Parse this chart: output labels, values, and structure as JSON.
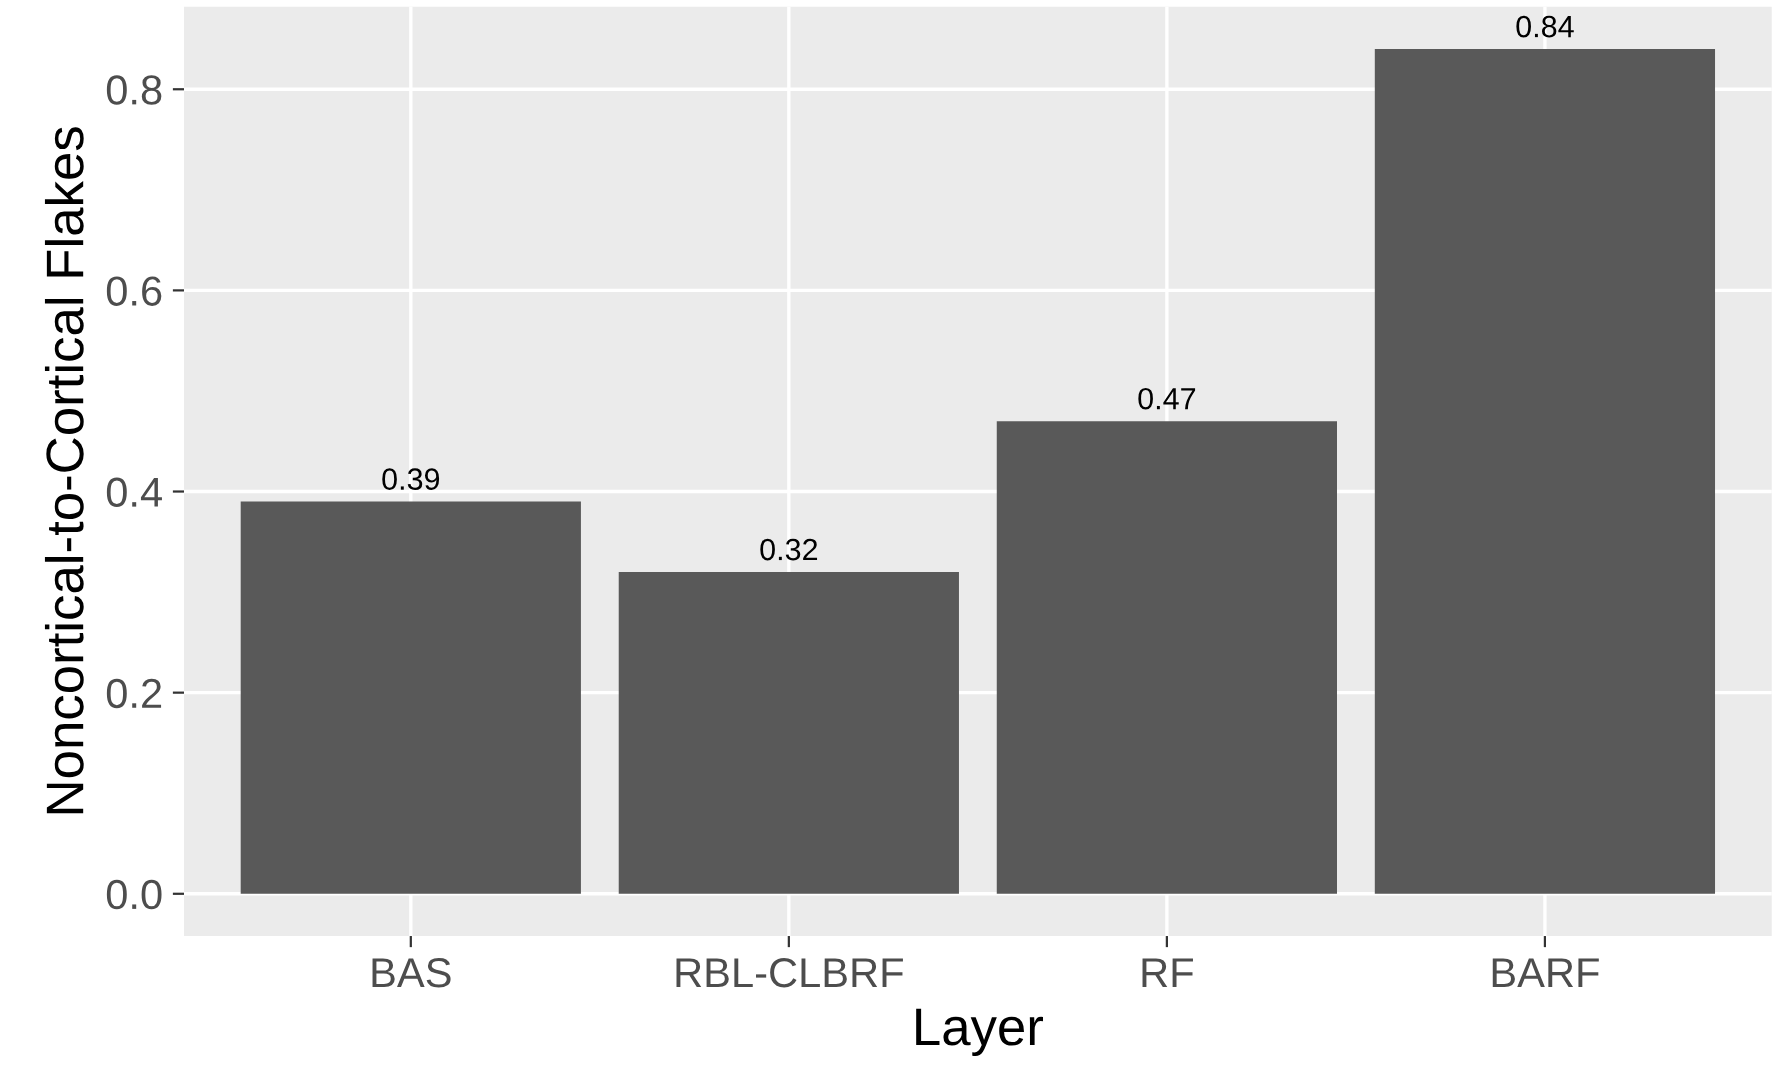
{
  "chart_data": {
    "type": "bar",
    "xlabel": "Layer",
    "ylabel": "Noncortical-to-Cortical Flakes",
    "categories": [
      "BAS",
      "RBL-CLBRF",
      "RF",
      "BARF"
    ],
    "values": [
      0.39,
      0.32,
      0.47,
      0.84
    ],
    "color": "#595959",
    "ylim": [
      -0.042,
      0.882
    ],
    "yticks": [
      {
        "value": 0,
        "label": "0.0"
      },
      {
        "value": 0.2,
        "label": "0.2"
      },
      {
        "value": 0.4,
        "label": "0.4"
      },
      {
        "value": 0.6,
        "label": "0.6"
      },
      {
        "value": 0.8,
        "label": "0.8"
      }
    ],
    "grid": true,
    "data_labels": true
  }
}
